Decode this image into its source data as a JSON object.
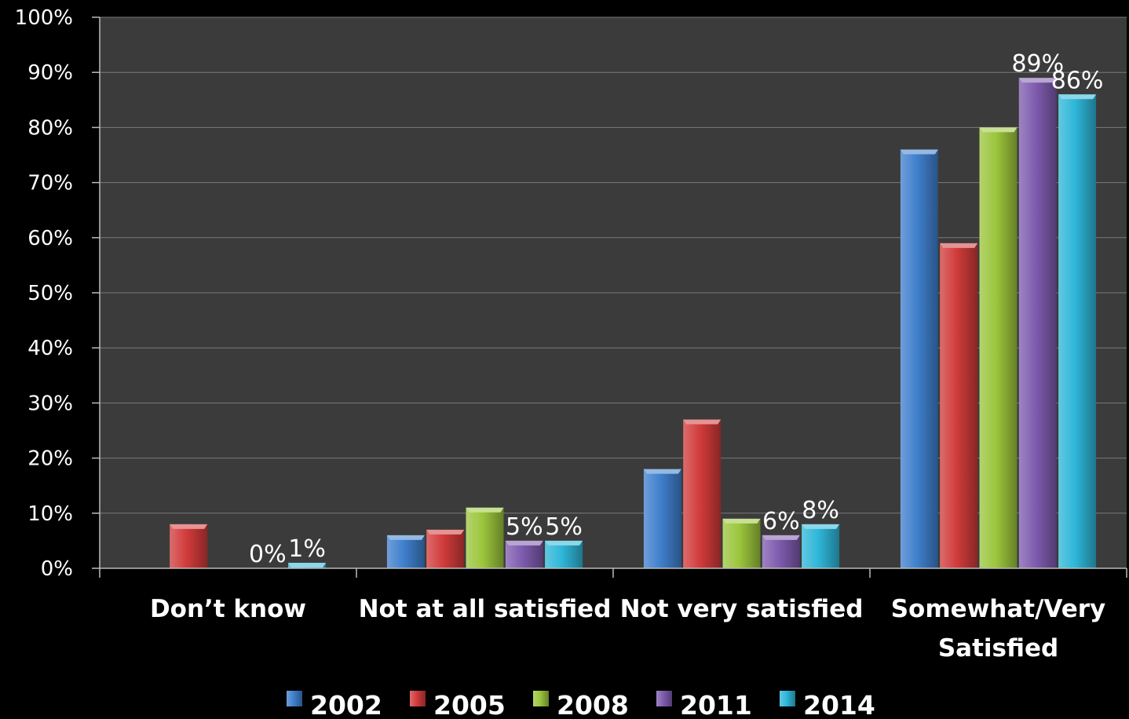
{
  "chart_data": {
    "type": "bar",
    "title": "",
    "xlabel": "",
    "ylabel": "",
    "ylim": [
      0,
      100
    ],
    "y_ticks": [
      "0%",
      "10%",
      "20%",
      "30%",
      "40%",
      "50%",
      "60%",
      "70%",
      "80%",
      "90%",
      "100%"
    ],
    "grid": true,
    "legend_position": "bottom",
    "categories": [
      [
        "Don’t know"
      ],
      [
        "Not at all satisfied"
      ],
      [
        "Not very satisfied"
      ],
      [
        "Somewhat/Very",
        "Satisfied"
      ]
    ],
    "series": [
      {
        "name": "2002",
        "color": "#3F7FCC",
        "values": [
          0,
          6,
          18,
          76
        ],
        "labels": [
          "",
          "",
          "",
          ""
        ]
      },
      {
        "name": "2005",
        "color": "#D13B3B",
        "values": [
          8,
          7,
          27,
          59
        ],
        "labels": [
          "",
          "",
          "",
          ""
        ]
      },
      {
        "name": "2008",
        "color": "#9BC53C",
        "values": [
          0,
          11,
          9,
          80
        ],
        "labels": [
          "",
          "",
          "",
          ""
        ]
      },
      {
        "name": "2011",
        "color": "#7E5BAE",
        "values": [
          0,
          5,
          6,
          89
        ],
        "labels": [
          "0%",
          "5%",
          "6%",
          "89%"
        ]
      },
      {
        "name": "2014",
        "color": "#2EB6D8",
        "values": [
          1,
          5,
          8,
          86
        ],
        "labels": [
          "1%",
          "5%",
          "8%",
          "86%"
        ]
      }
    ]
  }
}
